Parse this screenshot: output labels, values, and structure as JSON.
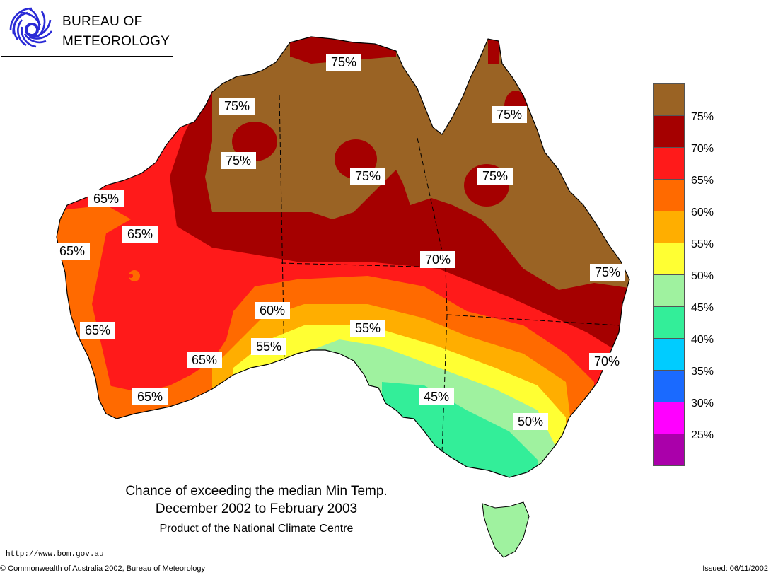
{
  "header": {
    "org_line1": "BUREAU OF",
    "org_line2": "METEOROLOGY",
    "logo_icon": "bom-swirl-logo-icon"
  },
  "map": {
    "region": "Australia",
    "labels": [
      {
        "text": "75%"
      },
      {
        "text": "75%"
      },
      {
        "text": "75%"
      },
      {
        "text": "75%"
      },
      {
        "text": "75%"
      },
      {
        "text": "75%"
      },
      {
        "text": "75%"
      },
      {
        "text": "65%"
      },
      {
        "text": "65%"
      },
      {
        "text": "65%"
      },
      {
        "text": "70%"
      },
      {
        "text": "60%"
      },
      {
        "text": "55%"
      },
      {
        "text": "55%"
      },
      {
        "text": "65%"
      },
      {
        "text": "65%"
      },
      {
        "text": "65%"
      },
      {
        "text": "45%"
      },
      {
        "text": "50%"
      },
      {
        "text": "70%"
      }
    ]
  },
  "legend": {
    "colors": [
      "#9a6324",
      "#a50000",
      "#ff1a1a",
      "#ff6a00",
      "#ffae00",
      "#ffff33",
      "#9ff29f",
      "#33ee99",
      "#00ccff",
      "#1a6aff",
      "#ff00ff",
      "#aa00aa"
    ],
    "labels": [
      "75%",
      "70%",
      "65%",
      "60%",
      "55%",
      "50%",
      "45%",
      "40%",
      "35%",
      "30%",
      "25%"
    ]
  },
  "caption": {
    "line1": "Chance of exceeding the median Min Temp.",
    "line2": "December 2002 to February 2003",
    "line3": "Product of the National Climate Centre"
  },
  "footer": {
    "url": "http://www.bom.gov.au",
    "copyright": "© Commonwealth of Australia 2002, Bureau of Meteorology",
    "issued": "Issued: 06/11/2002"
  }
}
